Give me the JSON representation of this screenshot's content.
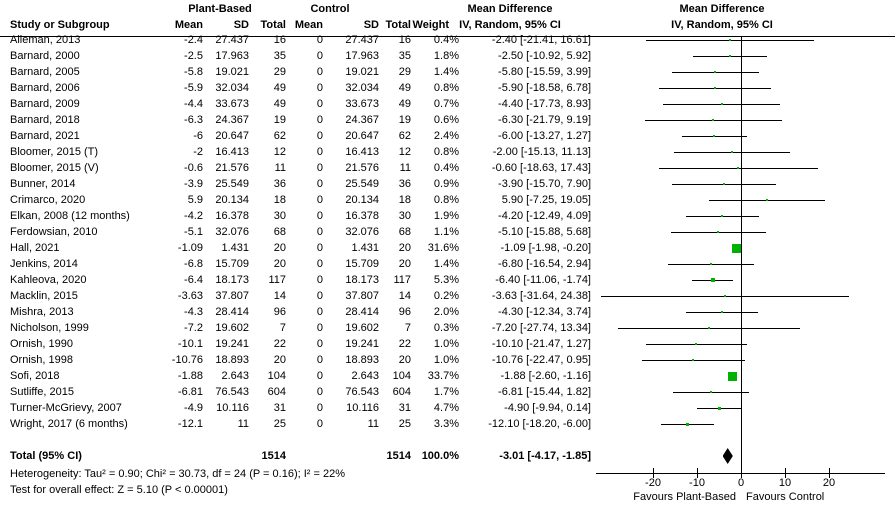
{
  "header": {
    "group_left": "Plant-Based",
    "group_right": "Control",
    "col_study": "Study or Subgroup",
    "col_mean": "Mean",
    "col_sd": "SD",
    "col_total": "Total",
    "col_weight": "Weight",
    "md_title": "Mean Difference",
    "md_subtitle": "IV, Random, 95% CI"
  },
  "chart_data": {
    "type": "forest",
    "title": "Mean Difference, IV, Random, 95% CI",
    "marker_color": "#00b200",
    "diamond_color": "#000000",
    "x_axis": {
      "ticks": [
        -20,
        -10,
        0,
        10,
        20
      ],
      "range": [
        -33,
        33
      ],
      "favours_left": "Favours Plant-Based",
      "favours_right": "Favours Control"
    },
    "studies": [
      {
        "name": "Alleman, 2013",
        "mean1": "-2.4",
        "sd1": "27.437",
        "n1": "16",
        "mean2": "0",
        "sd2": "27.437",
        "n2": "16",
        "weight": "0.4%",
        "ci_text": "-2.40 [-21.41, 16.61]",
        "est": -2.4,
        "lo": -21.41,
        "hi": 16.61,
        "w": 0.4
      },
      {
        "name": "Barnard, 2000",
        "mean1": "-2.5",
        "sd1": "17.963",
        "n1": "35",
        "mean2": "0",
        "sd2": "17.963",
        "n2": "35",
        "weight": "1.8%",
        "ci_text": "-2.50 [-10.92, 5.92]",
        "est": -2.5,
        "lo": -10.92,
        "hi": 5.92,
        "w": 1.8
      },
      {
        "name": "Barnard, 2005",
        "mean1": "-5.8",
        "sd1": "19.021",
        "n1": "29",
        "mean2": "0",
        "sd2": "19.021",
        "n2": "29",
        "weight": "1.4%",
        "ci_text": "-5.80 [-15.59, 3.99]",
        "est": -5.8,
        "lo": -15.59,
        "hi": 3.99,
        "w": 1.4
      },
      {
        "name": "Barnard, 2006",
        "mean1": "-5.9",
        "sd1": "32.034",
        "n1": "49",
        "mean2": "0",
        "sd2": "32.034",
        "n2": "49",
        "weight": "0.8%",
        "ci_text": "-5.90 [-18.58, 6.78]",
        "est": -5.9,
        "lo": -18.58,
        "hi": 6.78,
        "w": 0.8
      },
      {
        "name": "Barnard, 2009",
        "mean1": "-4.4",
        "sd1": "33.673",
        "n1": "49",
        "mean2": "0",
        "sd2": "33.673",
        "n2": "49",
        "weight": "0.7%",
        "ci_text": "-4.40 [-17.73, 8.93]",
        "est": -4.4,
        "lo": -17.73,
        "hi": 8.93,
        "w": 0.7
      },
      {
        "name": "Barnard, 2018",
        "mean1": "-6.3",
        "sd1": "24.367",
        "n1": "19",
        "mean2": "0",
        "sd2": "24.367",
        "n2": "19",
        "weight": "0.6%",
        "ci_text": "-6.30 [-21.79, 9.19]",
        "est": -6.3,
        "lo": -21.79,
        "hi": 9.19,
        "w": 0.6
      },
      {
        "name": "Barnard, 2021",
        "mean1": "-6",
        "sd1": "20.647",
        "n1": "62",
        "mean2": "0",
        "sd2": "20.647",
        "n2": "62",
        "weight": "2.4%",
        "ci_text": "-6.00 [-13.27, 1.27]",
        "est": -6.0,
        "lo": -13.27,
        "hi": 1.27,
        "w": 2.4
      },
      {
        "name": "Bloomer, 2015 (T)",
        "mean1": "-2",
        "sd1": "16.413",
        "n1": "12",
        "mean2": "0",
        "sd2": "16.413",
        "n2": "12",
        "weight": "0.8%",
        "ci_text": "-2.00 [-15.13, 11.13]",
        "est": -2.0,
        "lo": -15.13,
        "hi": 11.13,
        "w": 0.8
      },
      {
        "name": "Bloomer, 2015 (V)",
        "mean1": "-0.6",
        "sd1": "21.576",
        "n1": "11",
        "mean2": "0",
        "sd2": "21.576",
        "n2": "11",
        "weight": "0.4%",
        "ci_text": "-0.60 [-18.63, 17.43]",
        "est": -0.6,
        "lo": -18.63,
        "hi": 17.43,
        "w": 0.4
      },
      {
        "name": "Bunner, 2014",
        "mean1": "-3.9",
        "sd1": "25.549",
        "n1": "36",
        "mean2": "0",
        "sd2": "25.549",
        "n2": "36",
        "weight": "0.9%",
        "ci_text": "-3.90 [-15.70, 7.90]",
        "est": -3.9,
        "lo": -15.7,
        "hi": 7.9,
        "w": 0.9
      },
      {
        "name": "Crimarco, 2020",
        "mean1": "5.9",
        "sd1": "20.134",
        "n1": "18",
        "mean2": "0",
        "sd2": "20.134",
        "n2": "18",
        "weight": "0.8%",
        "ci_text": "5.90 [-7.25, 19.05]",
        "est": 5.9,
        "lo": -7.25,
        "hi": 19.05,
        "w": 0.8
      },
      {
        "name": "Elkan, 2008 (12 months)",
        "mean1": "-4.2",
        "sd1": "16.378",
        "n1": "30",
        "mean2": "0",
        "sd2": "16.378",
        "n2": "30",
        "weight": "1.9%",
        "ci_text": "-4.20 [-12.49, 4.09]",
        "est": -4.2,
        "lo": -12.49,
        "hi": 4.09,
        "w": 1.9
      },
      {
        "name": "Ferdowsian, 2010",
        "mean1": "-5.1",
        "sd1": "32.076",
        "n1": "68",
        "mean2": "0",
        "sd2": "32.076",
        "n2": "68",
        "weight": "1.1%",
        "ci_text": "-5.10 [-15.88, 5.68]",
        "est": -5.1,
        "lo": -15.88,
        "hi": 5.68,
        "w": 1.1
      },
      {
        "name": "Hall, 2021",
        "mean1": "-1.09",
        "sd1": "1.431",
        "n1": "20",
        "mean2": "0",
        "sd2": "1.431",
        "n2": "20",
        "weight": "31.6%",
        "ci_text": "-1.09 [-1.98, -0.20]",
        "est": -1.09,
        "lo": -1.98,
        "hi": -0.2,
        "w": 31.6
      },
      {
        "name": "Jenkins, 2014",
        "mean1": "-6.8",
        "sd1": "15.709",
        "n1": "20",
        "mean2": "0",
        "sd2": "15.709",
        "n2": "20",
        "weight": "1.4%",
        "ci_text": "-6.80 [-16.54, 2.94]",
        "est": -6.8,
        "lo": -16.54,
        "hi": 2.94,
        "w": 1.4
      },
      {
        "name": "Kahleova, 2020",
        "mean1": "-6.4",
        "sd1": "18.173",
        "n1": "117",
        "mean2": "0",
        "sd2": "18.173",
        "n2": "117",
        "weight": "5.3%",
        "ci_text": "-6.40 [-11.06, -1.74]",
        "est": -6.4,
        "lo": -11.06,
        "hi": -1.74,
        "w": 5.3
      },
      {
        "name": "Macklin, 2015",
        "mean1": "-3.63",
        "sd1": "37.807",
        "n1": "14",
        "mean2": "0",
        "sd2": "37.807",
        "n2": "14",
        "weight": "0.2%",
        "ci_text": "-3.63 [-31.64, 24.38]",
        "est": -3.63,
        "lo": -31.64,
        "hi": 24.38,
        "w": 0.2
      },
      {
        "name": "Mishra, 2013",
        "mean1": "-4.3",
        "sd1": "28.414",
        "n1": "96",
        "mean2": "0",
        "sd2": "28.414",
        "n2": "96",
        "weight": "2.0%",
        "ci_text": "-4.30 [-12.34, 3.74]",
        "est": -4.3,
        "lo": -12.34,
        "hi": 3.74,
        "w": 2.0
      },
      {
        "name": "Nicholson, 1999",
        "mean1": "-7.2",
        "sd1": "19.602",
        "n1": "7",
        "mean2": "0",
        "sd2": "19.602",
        "n2": "7",
        "weight": "0.3%",
        "ci_text": "-7.20 [-27.74, 13.34]",
        "est": -7.2,
        "lo": -27.74,
        "hi": 13.34,
        "w": 0.3
      },
      {
        "name": "Ornish, 1990",
        "mean1": "-10.1",
        "sd1": "19.241",
        "n1": "22",
        "mean2": "0",
        "sd2": "19.241",
        "n2": "22",
        "weight": "1.0%",
        "ci_text": "-10.10 [-21.47, 1.27]",
        "est": -10.1,
        "lo": -21.47,
        "hi": 1.27,
        "w": 1.0
      },
      {
        "name": "Ornish, 1998",
        "mean1": "-10.76",
        "sd1": "18.893",
        "n1": "20",
        "mean2": "0",
        "sd2": "18.893",
        "n2": "20",
        "weight": "1.0%",
        "ci_text": "-10.76 [-22.47, 0.95]",
        "est": -10.76,
        "lo": -22.47,
        "hi": 0.95,
        "w": 1.0
      },
      {
        "name": "Sofi, 2018",
        "mean1": "-1.88",
        "sd1": "2.643",
        "n1": "104",
        "mean2": "0",
        "sd2": "2.643",
        "n2": "104",
        "weight": "33.7%",
        "ci_text": "-1.88 [-2.60, -1.16]",
        "est": -1.88,
        "lo": -2.6,
        "hi": -1.16,
        "w": 33.7
      },
      {
        "name": "Sutliffe, 2015",
        "mean1": "-6.81",
        "sd1": "76.543",
        "n1": "604",
        "mean2": "0",
        "sd2": "76.543",
        "n2": "604",
        "weight": "1.7%",
        "ci_text": "-6.81 [-15.44, 1.82]",
        "est": -6.81,
        "lo": -15.44,
        "hi": 1.82,
        "w": 1.7
      },
      {
        "name": "Turner-McGrievy, 2007",
        "mean1": "-4.9",
        "sd1": "10.116",
        "n1": "31",
        "mean2": "0",
        "sd2": "10.116",
        "n2": "31",
        "weight": "4.7%",
        "ci_text": "-4.90 [-9.94, 0.14]",
        "est": -4.9,
        "lo": -9.94,
        "hi": 0.14,
        "w": 4.7
      },
      {
        "name": "Wright, 2017 (6 months)",
        "mean1": "-12.1",
        "sd1": "11",
        "n1": "25",
        "mean2": "0",
        "sd2": "11",
        "n2": "25",
        "weight": "3.3%",
        "ci_text": "-12.10 [-18.20, -6.00]",
        "est": -12.1,
        "lo": -18.2,
        "hi": -6.0,
        "w": 3.3
      }
    ],
    "total": {
      "label": "Total (95% CI)",
      "n1": "1514",
      "n2": "1514",
      "weight": "100.0%",
      "ci_text": "-3.01 [-4.17, -1.85]",
      "est": -3.01,
      "lo": -4.17,
      "hi": -1.85
    },
    "heterogeneity": "Heterogeneity: Tau² = 0.90; Chi² = 30.73, df = 24 (P = 0.16); I² = 22%",
    "overall_effect": "Test for overall effect: Z = 5.10 (P < 0.00001)"
  }
}
